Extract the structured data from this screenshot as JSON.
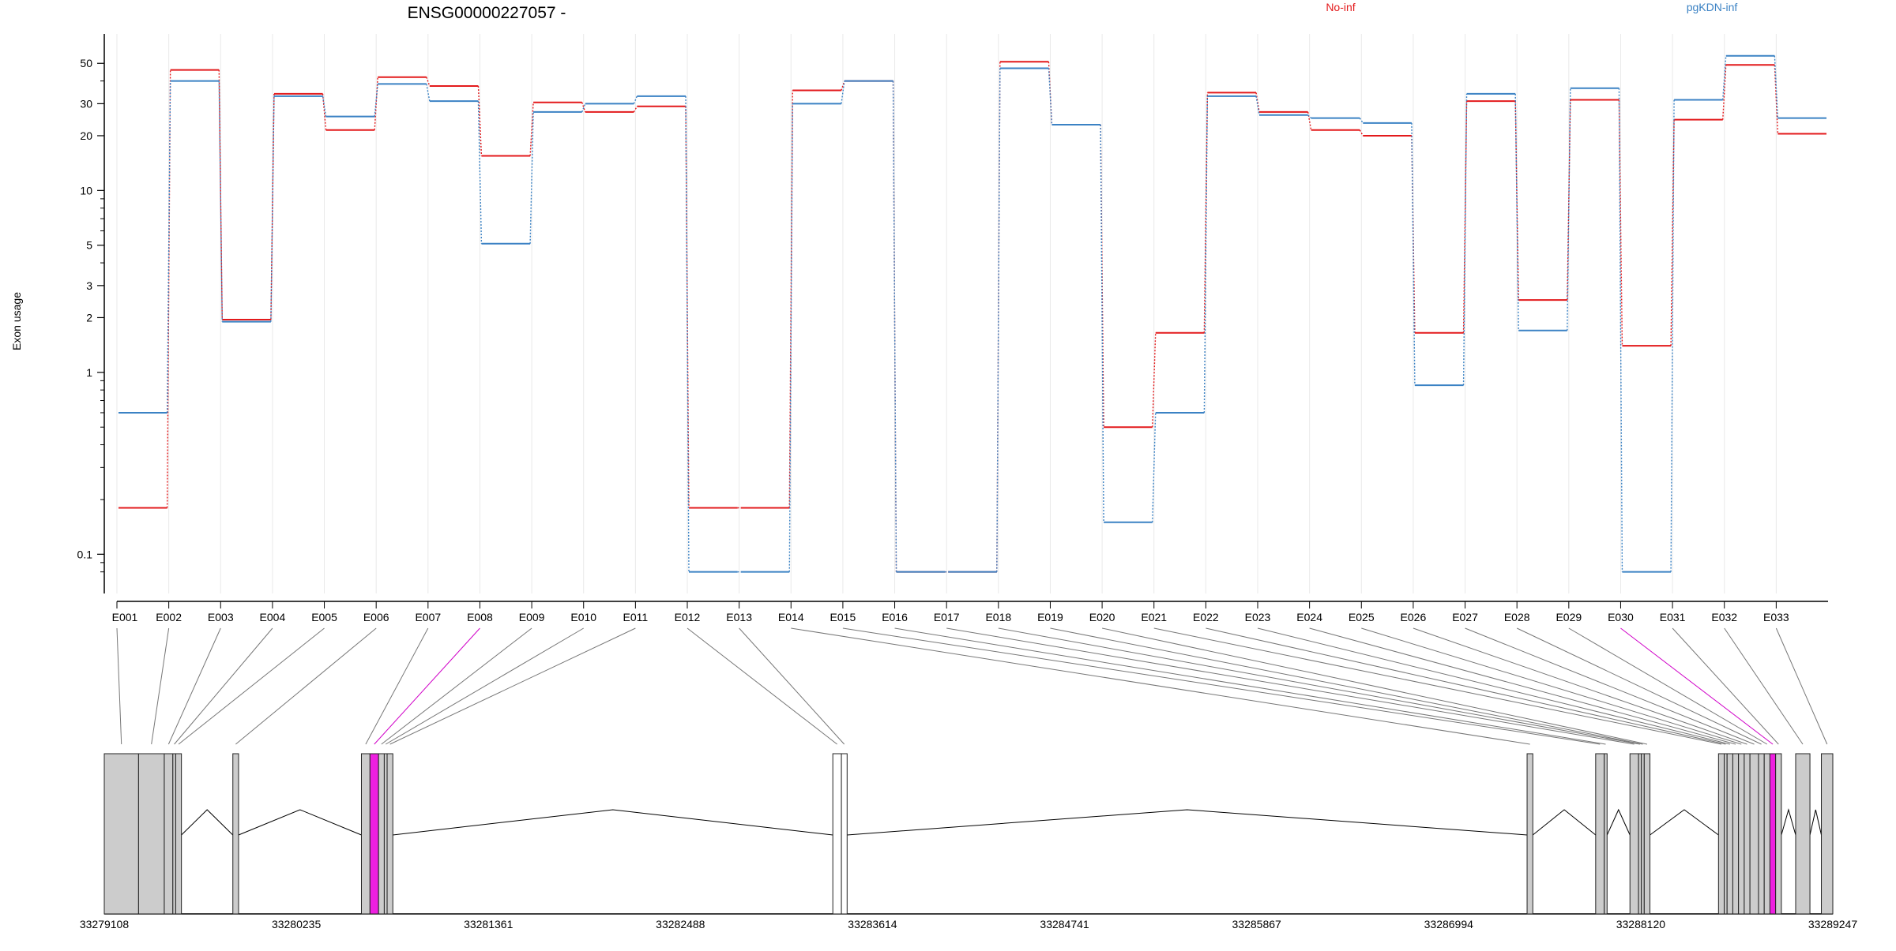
{
  "chart_data": {
    "type": "line",
    "title": "ENSG00000227057 -",
    "ylabel": "Exon usage",
    "y_scale": "log",
    "ylim": [
      0.07,
      60
    ],
    "yticks": [
      {
        "v": 0.1,
        "label": "0.1"
      },
      {
        "v": 1,
        "label": "1"
      },
      {
        "v": 2,
        "label": "2"
      },
      {
        "v": 3,
        "label": "3"
      },
      {
        "v": 5,
        "label": "5"
      },
      {
        "v": 10,
        "label": "10"
      },
      {
        "v": 20,
        "label": "20"
      },
      {
        "v": 30,
        "label": "30"
      },
      {
        "v": 50,
        "label": "50"
      }
    ],
    "categories": [
      "E001",
      "E002",
      "E003",
      "E004",
      "E005",
      "E006",
      "E007",
      "E008",
      "E009",
      "E010",
      "E011",
      "E012",
      "E013",
      "E014",
      "E015",
      "E016",
      "E017",
      "E018",
      "E019",
      "E020",
      "E021",
      "E022",
      "E023",
      "E024",
      "E025",
      "E026",
      "E027",
      "E028",
      "E029",
      "E030",
      "E031",
      "E032",
      "E033"
    ],
    "series": [
      {
        "name": "No-inf",
        "color": "#e31a1c",
        "values": [
          0.18,
          46,
          1.95,
          34,
          21.5,
          42,
          37.5,
          15.5,
          30.5,
          27,
          29,
          0.18,
          0.18,
          35.5,
          40,
          0.08,
          0.08,
          51,
          23,
          0.5,
          1.65,
          34.5,
          27,
          21.5,
          20,
          1.65,
          31,
          2.5,
          31.5,
          1.4,
          24.5,
          49,
          20.5
        ]
      },
      {
        "name": "pgKDN-inf",
        "color": "#3b82c4",
        "values": [
          0.6,
          40,
          1.9,
          33,
          25.5,
          38.5,
          31,
          5.1,
          27,
          30,
          33,
          0.08,
          0.08,
          30,
          40,
          0.08,
          0.08,
          47,
          23,
          0.15,
          0.6,
          33,
          26,
          25,
          23.5,
          0.85,
          34,
          1.7,
          36.5,
          0.08,
          31.5,
          55,
          25
        ]
      }
    ],
    "legend_position": "top",
    "grid": true
  },
  "gene_track": {
    "coordinate_labels": [
      "33279108",
      "33280235",
      "33281361",
      "33282488",
      "33283614",
      "33284741",
      "33285867",
      "33286994",
      "33288120",
      "33289247"
    ],
    "exons": [
      {
        "start": 0.0,
        "end": 0.012
      },
      {
        "start": 0.012,
        "end": 0.021
      },
      {
        "start": 0.021,
        "end": 0.024
      },
      {
        "start": 0.024,
        "end": 0.025
      },
      {
        "start": 0.025,
        "end": 0.027
      },
      {
        "start": 0.045,
        "end": 0.047
      },
      {
        "start": 0.09,
        "end": 0.093
      },
      {
        "start": 0.093,
        "end": 0.096,
        "highlight": true
      },
      {
        "start": 0.096,
        "end": 0.098
      },
      {
        "start": 0.098,
        "end": 0.099
      },
      {
        "start": 0.099,
        "end": 0.101
      },
      {
        "start": 0.255,
        "end": 0.258,
        "open": true
      },
      {
        "start": 0.258,
        "end": 0.26,
        "open": true
      },
      {
        "start": 0.498,
        "end": 0.5
      },
      {
        "start": 0.522,
        "end": 0.525
      },
      {
        "start": 0.525,
        "end": 0.526
      },
      {
        "start": 0.534,
        "end": 0.537
      },
      {
        "start": 0.537,
        "end": 0.538
      },
      {
        "start": 0.538,
        "end": 0.539
      },
      {
        "start": 0.539,
        "end": 0.541
      },
      {
        "start": 0.565,
        "end": 0.567
      },
      {
        "start": 0.567,
        "end": 0.568
      },
      {
        "start": 0.568,
        "end": 0.57
      },
      {
        "start": 0.57,
        "end": 0.572
      },
      {
        "start": 0.572,
        "end": 0.574
      },
      {
        "start": 0.574,
        "end": 0.576
      },
      {
        "start": 0.576,
        "end": 0.579
      },
      {
        "start": 0.579,
        "end": 0.581
      },
      {
        "start": 0.581,
        "end": 0.583
      },
      {
        "start": 0.583,
        "end": 0.585,
        "highlight": true
      },
      {
        "start": 0.585,
        "end": 0.587
      },
      {
        "start": 0.592,
        "end": 0.597
      },
      {
        "start": 0.601,
        "end": 0.605
      }
    ]
  }
}
